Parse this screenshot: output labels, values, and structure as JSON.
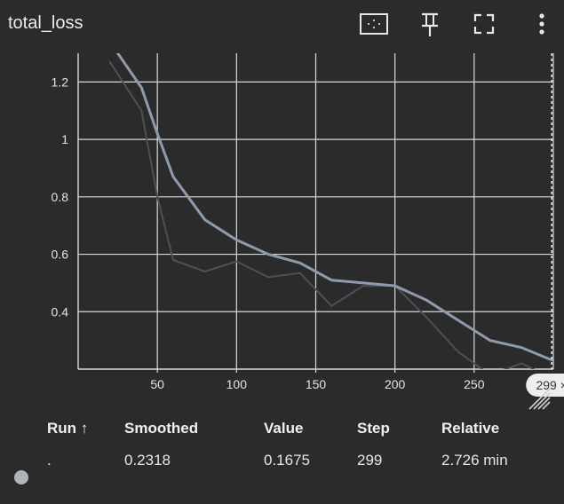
{
  "card": {
    "title": "total_loss",
    "toolbar": [
      {
        "name": "fit-domain-icon",
        "label": ""
      },
      {
        "name": "pin-icon",
        "label": ""
      },
      {
        "name": "fullscreen-icon",
        "label": ""
      },
      {
        "name": "more-vert-icon",
        "label": ""
      }
    ]
  },
  "chart_data": {
    "type": "line",
    "title": "",
    "xlabel": "",
    "ylabel": "",
    "xlim": [
      0,
      300
    ],
    "ylim": [
      0.2,
      1.3
    ],
    "x_ticks": [
      50,
      100,
      150,
      200,
      250
    ],
    "x_tick_labels": [
      "50",
      "100",
      "150",
      "200",
      "250"
    ],
    "y_ticks": [
      0.4,
      0.6,
      0.8,
      1,
      1.2
    ],
    "y_tick_labels": [
      "0.4",
      "0.6",
      "0.8",
      "1",
      "1.2"
    ],
    "grid": true,
    "hover_step": 299,
    "hover_chip_label": "299 ×",
    "series": [
      {
        "name": "",
        "role": "raw",
        "color": "#4c5057",
        "x": [
          20,
          40,
          50,
          60,
          80,
          100,
          120,
          140,
          160,
          180,
          200,
          220,
          240,
          260,
          280,
          299
        ],
        "y": [
          1.27,
          1.1,
          0.8,
          0.58,
          0.54,
          0.575,
          0.52,
          0.535,
          0.42,
          0.49,
          0.49,
          0.38,
          0.26,
          0.18,
          0.22,
          0.1675
        ]
      },
      {
        "name": "",
        "role": "smoothed",
        "color": "#8e9bab",
        "x": [
          25,
          40,
          50,
          60,
          80,
          100,
          120,
          140,
          160,
          180,
          200,
          220,
          240,
          260,
          280,
          299
        ],
        "y": [
          1.3,
          1.18,
          1.02,
          0.87,
          0.72,
          0.65,
          0.6,
          0.57,
          0.51,
          0.5,
          0.49,
          0.44,
          0.37,
          0.3,
          0.275,
          0.2318
        ]
      }
    ]
  },
  "table": {
    "headers": {
      "run": "Run ↑",
      "smoothed": "Smoothed",
      "value": "Value",
      "step": "Step",
      "relative": "Relative"
    },
    "row": {
      "run": ".",
      "smoothed": "0.2318",
      "value": "0.1675",
      "step": "299",
      "relative": "2.726 min",
      "color": "#b0b4b9"
    }
  },
  "colors": {
    "background": "#2b2b2b",
    "grid": "#d9d9d9",
    "text": "#e8e8e8"
  }
}
